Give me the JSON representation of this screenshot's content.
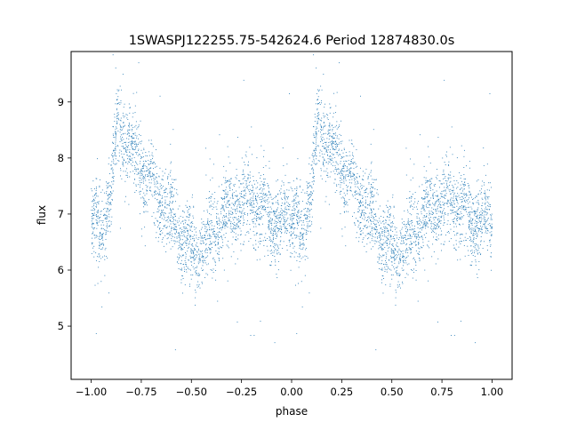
{
  "chart_data": {
    "type": "scatter",
    "title": "1SWASPJ122255.75-542624.6 Period 12874830.0s",
    "xlabel": "phase",
    "ylabel": "flux",
    "xlim": [
      -1.1,
      1.1
    ],
    "ylim": [
      4.05,
      9.9
    ],
    "xticks": [
      -1.0,
      -0.75,
      -0.5,
      -0.25,
      0.0,
      0.25,
      0.5,
      0.75,
      1.0
    ],
    "xtick_labels": [
      "−1.00",
      "−0.75",
      "−0.50",
      "−0.25",
      "0.00",
      "0.25",
      "0.50",
      "0.75",
      "1.00"
    ],
    "yticks": [
      5,
      6,
      7,
      8,
      9
    ],
    "ytick_labels": [
      "5",
      "6",
      "7",
      "8",
      "9"
    ],
    "grid": false,
    "marker_color": "#1f77b4",
    "series": [
      {
        "phase_profile": [
          [
            0.0,
            6.85
          ],
          [
            0.05,
            6.75
          ],
          [
            0.1,
            7.3
          ],
          [
            0.13,
            8.6
          ],
          [
            0.17,
            8.4
          ],
          [
            0.22,
            8.0
          ],
          [
            0.3,
            7.5
          ],
          [
            0.38,
            7.0
          ],
          [
            0.45,
            6.6
          ],
          [
            0.52,
            6.3
          ],
          [
            0.58,
            6.5
          ],
          [
            0.65,
            6.9
          ],
          [
            0.72,
            7.2
          ],
          [
            0.8,
            7.25
          ],
          [
            0.9,
            6.85
          ],
          [
            1.0,
            6.85
          ]
        ],
        "scatter_sd": 0.35,
        "points_per_unit_phase": 2600,
        "outlier_fraction": 0.012
      }
    ]
  }
}
